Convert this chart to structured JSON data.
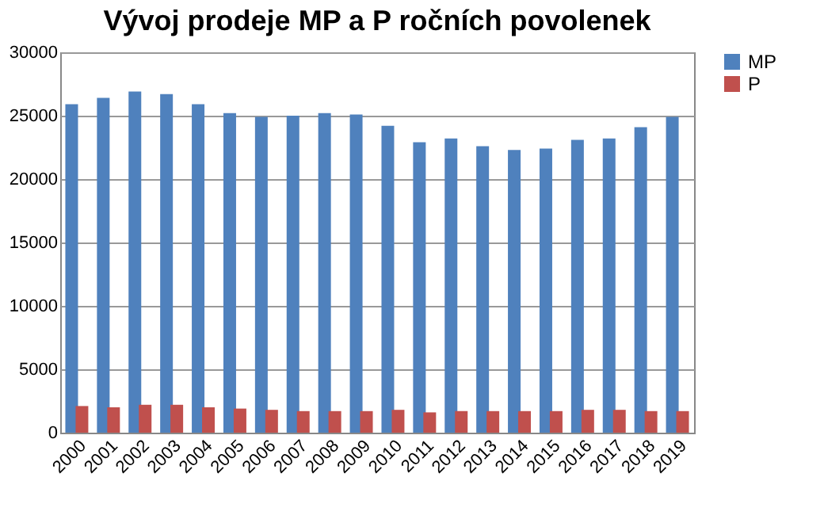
{
  "chart_data": {
    "type": "bar",
    "title": "Vývoj prodeje MP a P ročních povolenek",
    "categories": [
      "2000",
      "2001",
      "2002",
      "2003",
      "2004",
      "2005",
      "2006",
      "2007",
      "2008",
      "2009",
      "2010",
      "2011",
      "2012",
      "2013",
      "2014",
      "2015",
      "2016",
      "2017",
      "2018",
      "2019"
    ],
    "series": [
      {
        "name": "MP",
        "color": "#4f81bd",
        "values": [
          25900,
          26400,
          26900,
          26700,
          25900,
          25200,
          24900,
          25000,
          25200,
          25100,
          24200,
          22900,
          23200,
          22600,
          22300,
          22400,
          23100,
          23200,
          24100,
          24900
        ]
      },
      {
        "name": "P",
        "color": "#c0504d",
        "values": [
          2100,
          2000,
          2200,
          2200,
          2000,
          1900,
          1800,
          1700,
          1700,
          1700,
          1800,
          1600,
          1700,
          1700,
          1700,
          1700,
          1800,
          1800,
          1700,
          1700
        ]
      }
    ],
    "ylim": [
      0,
      30000
    ],
    "yticks": [
      0,
      5000,
      10000,
      15000,
      20000,
      25000,
      30000
    ],
    "grid": "y",
    "legend": "right"
  }
}
